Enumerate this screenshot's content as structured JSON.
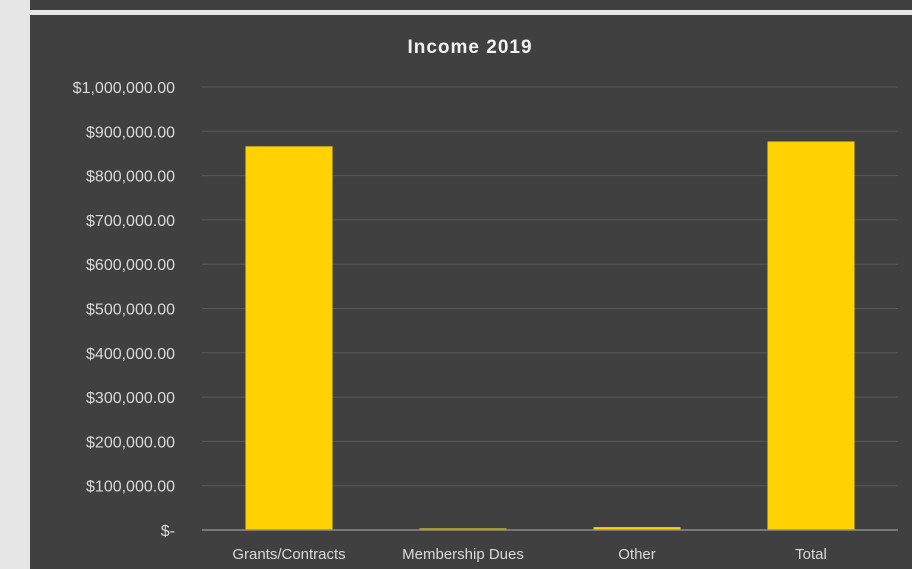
{
  "chart_data": {
    "type": "bar",
    "title": "Income 2019",
    "categories": [
      "Grants/Contracts",
      "Membership Dues",
      "Other",
      "Total"
    ],
    "values": [
      866000,
      3500,
      6500,
      877000
    ],
    "ylim": [
      0,
      1000000
    ],
    "ytick_values": [
      0,
      100000,
      200000,
      300000,
      400000,
      500000,
      600000,
      700000,
      800000,
      900000,
      1000000
    ],
    "ytick_labels": [
      "$-",
      "$100,000.00",
      "$200,000.00",
      "$300,000.00",
      "$400,000.00",
      "$500,000.00",
      "$600,000.00",
      "$700,000.00",
      "$800,000.00",
      "$900,000.00",
      "$1,000,000.00"
    ],
    "grid": true,
    "legend": "none",
    "colors": {
      "bar": "#ffd200",
      "background": "#404040",
      "grid": "#595959",
      "text": "#d9d9d9",
      "title": "#f2f2f2"
    }
  }
}
